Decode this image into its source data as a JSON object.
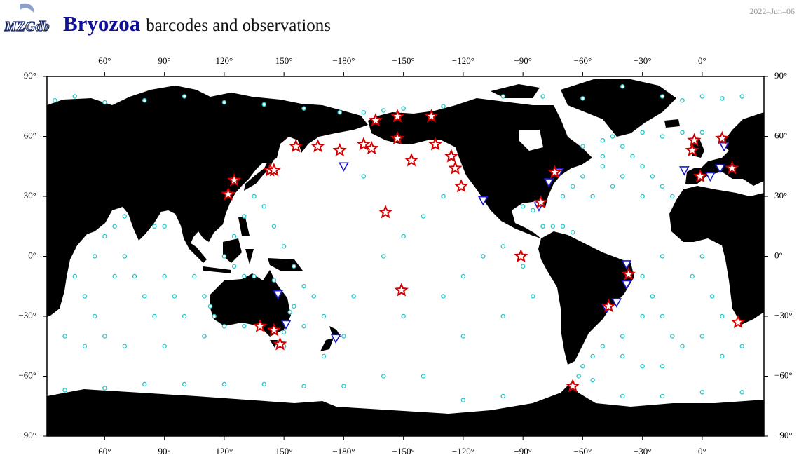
{
  "header": {
    "logo": "MZGdb",
    "title": "Bryozoa",
    "subtitle": "barcodes and observations",
    "date": "2022–Jun–06"
  },
  "map": {
    "xlim": [
      31,
      391
    ],
    "ylim": [
      -90,
      90
    ],
    "xticks": [
      {
        "value": 60,
        "label": "60°"
      },
      {
        "value": 90,
        "label": "90°"
      },
      {
        "value": 120,
        "label": "120°"
      },
      {
        "value": 150,
        "label": "150°"
      },
      {
        "value": -180,
        "label": "−180°"
      },
      {
        "value": -150,
        "label": "−150°"
      },
      {
        "value": -120,
        "label": "−120°"
      },
      {
        "value": -90,
        "label": "−90°"
      },
      {
        "value": -60,
        "label": "−60°"
      },
      {
        "value": -30,
        "label": "−30°"
      },
      {
        "value": 0,
        "label": "0°"
      }
    ],
    "yticks": [
      {
        "value": 90,
        "label": "90°"
      },
      {
        "value": 60,
        "label": "60°"
      },
      {
        "value": 30,
        "label": "30°"
      },
      {
        "value": 0,
        "label": "0°"
      },
      {
        "value": -30,
        "label": "−30°"
      },
      {
        "value": -60,
        "label": "−60°"
      },
      {
        "value": -90,
        "label": "−90°"
      }
    ],
    "observations": {
      "color": "#26c6c6",
      "points": [
        [
          35,
          78
        ],
        [
          45,
          80
        ],
        [
          60,
          77
        ],
        [
          80,
          78
        ],
        [
          100,
          80
        ],
        [
          120,
          77
        ],
        [
          140,
          76
        ],
        [
          160,
          74
        ],
        [
          178,
          72
        ],
        [
          -170,
          72
        ],
        [
          -160,
          73
        ],
        [
          -150,
          74
        ],
        [
          -130,
          75
        ],
        [
          -100,
          80
        ],
        [
          -80,
          80
        ],
        [
          -60,
          79
        ],
        [
          -20,
          80
        ],
        [
          -10,
          78
        ],
        [
          0,
          80
        ],
        [
          10,
          79
        ],
        [
          20,
          80
        ],
        [
          -40,
          85
        ],
        [
          -50,
          58
        ],
        [
          -45,
          60
        ],
        [
          -40,
          55
        ],
        [
          -35,
          50
        ],
        [
          -30,
          45
        ],
        [
          -25,
          40
        ],
        [
          -20,
          35
        ],
        [
          -15,
          30
        ],
        [
          -40,
          40
        ],
        [
          -50,
          45
        ],
        [
          -60,
          40
        ],
        [
          -65,
          35
        ],
        [
          -70,
          30
        ],
        [
          -55,
          30
        ],
        [
          -20,
          60
        ],
        [
          -10,
          62
        ],
        [
          0,
          62
        ],
        [
          -30,
          62
        ],
        [
          -50,
          50
        ],
        [
          -60,
          55
        ],
        [
          -30,
          30
        ],
        [
          -45,
          35
        ],
        [
          -90,
          25
        ],
        [
          -85,
          23
        ],
        [
          -80,
          15
        ],
        [
          -75,
          15
        ],
        [
          -70,
          15
        ],
        [
          -65,
          12
        ],
        [
          -30,
          -10
        ],
        [
          -25,
          -20
        ],
        [
          -20,
          -30
        ],
        [
          -15,
          -40
        ],
        [
          -10,
          -45
        ],
        [
          0,
          -40
        ],
        [
          10,
          -30
        ],
        [
          5,
          -20
        ],
        [
          -5,
          -10
        ],
        [
          0,
          0
        ],
        [
          -20,
          0
        ],
        [
          -30,
          -30
        ],
        [
          -40,
          -40
        ],
        [
          -50,
          -45
        ],
        [
          -55,
          -50
        ],
        [
          -60,
          -55
        ],
        [
          -40,
          -50
        ],
        [
          -30,
          -55
        ],
        [
          -20,
          -55
        ],
        [
          10,
          -50
        ],
        [
          20,
          -45
        ],
        [
          45,
          -10
        ],
        [
          50,
          -20
        ],
        [
          55,
          -30
        ],
        [
          60,
          -40
        ],
        [
          65,
          -10
        ],
        [
          70,
          0
        ],
        [
          75,
          -10
        ],
        [
          80,
          -20
        ],
        [
          85,
          -30
        ],
        [
          90,
          -10
        ],
        [
          95,
          -20
        ],
        [
          100,
          -30
        ],
        [
          105,
          -10
        ],
        [
          110,
          -20
        ],
        [
          60,
          10
        ],
        [
          65,
          15
        ],
        [
          70,
          20
        ],
        [
          85,
          15
        ],
        [
          90,
          15
        ],
        [
          55,
          0
        ],
        [
          40,
          -40
        ],
        [
          50,
          -45
        ],
        [
          70,
          -45
        ],
        [
          90,
          -45
        ],
        [
          110,
          -40
        ],
        [
          125,
          10
        ],
        [
          130,
          20
        ],
        [
          135,
          30
        ],
        [
          140,
          25
        ],
        [
          145,
          15
        ],
        [
          150,
          5
        ],
        [
          155,
          -5
        ],
        [
          160,
          -15
        ],
        [
          165,
          -20
        ],
        [
          170,
          -30
        ],
        [
          160,
          -35
        ],
        [
          155,
          -25
        ],
        [
          150,
          -45
        ],
        [
          170,
          -50
        ],
        [
          130,
          -10
        ],
        [
          120,
          0
        ],
        [
          125,
          -5
        ],
        [
          180,
          -40
        ],
        [
          -175,
          -20
        ],
        [
          -160,
          0
        ],
        [
          -150,
          10
        ],
        [
          -140,
          20
        ],
        [
          -130,
          30
        ],
        [
          -170,
          40
        ],
        [
          -150,
          -30
        ],
        [
          -130,
          -20
        ],
        [
          -120,
          -10
        ],
        [
          -110,
          0
        ],
        [
          -100,
          5
        ],
        [
          -90,
          -5
        ],
        [
          -85,
          -20
        ],
        [
          -100,
          -30
        ],
        [
          -120,
          -40
        ],
        [
          -140,
          -60
        ],
        [
          -160,
          -60
        ],
        [
          -180,
          -65
        ],
        [
          160,
          -65
        ],
        [
          140,
          -64
        ],
        [
          120,
          -64
        ],
        [
          100,
          -64
        ],
        [
          80,
          -64
        ],
        [
          60,
          -66
        ],
        [
          40,
          -67
        ],
        [
          -100,
          -70
        ],
        [
          -120,
          -72
        ],
        [
          -40,
          -70
        ],
        [
          -20,
          -70
        ],
        [
          0,
          -68
        ],
        [
          20,
          -68
        ],
        [
          -55,
          -62
        ],
        [
          -62,
          -60
        ],
        [
          115,
          -30
        ],
        [
          113,
          -25
        ],
        [
          120,
          -35
        ],
        [
          130,
          -35
        ],
        [
          150,
          -38
        ],
        [
          153,
          -28
        ],
        [
          145,
          -12
        ],
        [
          135,
          -10
        ]
      ]
    },
    "triangles": {
      "color": "#1a1ac8",
      "points": [
        [
          -180,
          45
        ],
        [
          147,
          -19
        ],
        [
          151,
          -34
        ],
        [
          176,
          -41
        ],
        [
          -110,
          28
        ],
        [
          -72,
          42
        ],
        [
          -77,
          37
        ],
        [
          -82,
          25
        ],
        [
          -38,
          -4
        ],
        [
          -38,
          -14
        ],
        [
          -43,
          -23
        ],
        [
          -48,
          -26
        ],
        [
          11,
          55
        ],
        [
          -9,
          43
        ],
        [
          4,
          40
        ],
        [
          9,
          44
        ]
      ]
    },
    "barcodes": {
      "color": "#d40000",
      "points": [
        [
          125,
          38
        ],
        [
          122,
          31
        ],
        [
          143,
          43
        ],
        [
          145,
          43
        ],
        [
          156,
          55
        ],
        [
          167,
          55
        ],
        [
          178,
          53
        ],
        [
          -170,
          56
        ],
        [
          -166,
          54
        ],
        [
          -164,
          68
        ],
        [
          -153,
          70
        ],
        [
          -153,
          59
        ],
        [
          -146,
          48
        ],
        [
          -136,
          70
        ],
        [
          -134,
          56
        ],
        [
          -126,
          50
        ],
        [
          -124,
          44
        ],
        [
          -121,
          35
        ],
        [
          -159,
          22
        ],
        [
          -151,
          -17
        ],
        [
          -91,
          0
        ],
        [
          -81,
          27
        ],
        [
          -74,
          42
        ],
        [
          -4,
          58
        ],
        [
          -5,
          53
        ],
        [
          10,
          59
        ],
        [
          15,
          44
        ],
        [
          -1,
          40
        ],
        [
          18,
          -33
        ],
        [
          -65,
          -65
        ],
        [
          148,
          -44
        ],
        [
          145,
          -37
        ],
        [
          138,
          -35
        ],
        [
          -37,
          -9
        ],
        [
          -47,
          -25
        ]
      ]
    }
  }
}
